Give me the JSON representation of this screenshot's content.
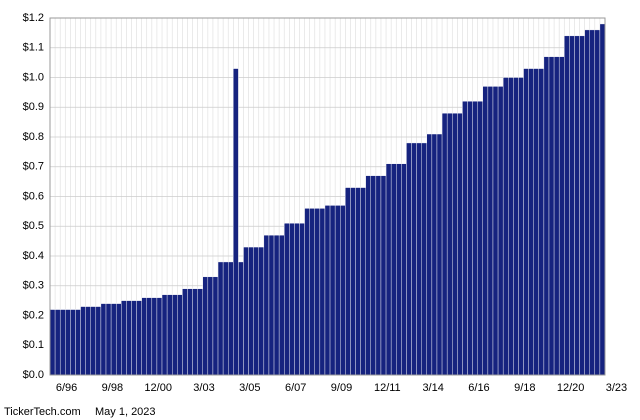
{
  "chart_data": {
    "type": "bar",
    "categories": [
      "6/96",
      null,
      null,
      null,
      null,
      null,
      null,
      null,
      null,
      "9/98",
      null,
      null,
      null,
      null,
      null,
      null,
      null,
      null,
      "12/00",
      null,
      null,
      null,
      null,
      null,
      null,
      null,
      null,
      "3/03",
      null,
      null,
      null,
      null,
      null,
      null,
      null,
      null,
      "3/05",
      null,
      null,
      null,
      null,
      null,
      null,
      null,
      null,
      "6/07",
      null,
      null,
      null,
      null,
      null,
      null,
      null,
      null,
      "9/09",
      null,
      null,
      null,
      null,
      null,
      null,
      null,
      null,
      "12/11",
      null,
      null,
      null,
      null,
      null,
      null,
      null,
      null,
      "3/14",
      null,
      null,
      null,
      null,
      null,
      null,
      null,
      null,
      "6/16",
      null,
      null,
      null,
      null,
      null,
      null,
      null,
      null,
      "9/18",
      null,
      null,
      null,
      null,
      null,
      null,
      null,
      null,
      "12/20",
      null,
      null,
      null,
      null,
      null,
      null,
      null,
      null,
      "3/23"
    ],
    "values": [
      0.22,
      0.22,
      0.22,
      0.22,
      0.22,
      0.22,
      0.23,
      0.23,
      0.23,
      0.23,
      0.24,
      0.24,
      0.24,
      0.24,
      0.25,
      0.25,
      0.25,
      0.25,
      0.26,
      0.26,
      0.26,
      0.26,
      0.27,
      0.27,
      0.27,
      0.27,
      0.29,
      0.29,
      0.29,
      0.29,
      0.33,
      0.33,
      0.33,
      0.38,
      0.38,
      0.38,
      1.03,
      0.38,
      0.43,
      0.43,
      0.43,
      0.43,
      0.47,
      0.47,
      0.47,
      0.47,
      0.51,
      0.51,
      0.51,
      0.51,
      0.56,
      0.56,
      0.56,
      0.56,
      0.57,
      0.57,
      0.57,
      0.57,
      0.63,
      0.63,
      0.63,
      0.63,
      0.67,
      0.67,
      0.67,
      0.67,
      0.71,
      0.71,
      0.71,
      0.71,
      0.78,
      0.78,
      0.78,
      0.78,
      0.81,
      0.81,
      0.81,
      0.88,
      0.88,
      0.88,
      0.88,
      0.92,
      0.92,
      0.92,
      0.92,
      0.97,
      0.97,
      0.97,
      0.97,
      1.0,
      1.0,
      1.0,
      1.0,
      1.03,
      1.03,
      1.03,
      1.03,
      1.07,
      1.07,
      1.07,
      1.07,
      1.14,
      1.14,
      1.14,
      1.14,
      1.16,
      1.16,
      1.16,
      1.18
    ],
    "color": "#16237f",
    "ylim": [
      0,
      1.2
    ],
    "yticks": [
      {
        "value": 0,
        "label": "$0.0"
      },
      {
        "value": 0.1,
        "label": "$0.1"
      },
      {
        "value": 0.2,
        "label": "$0.2"
      },
      {
        "value": 0.3,
        "label": "$0.3"
      },
      {
        "value": 0.4,
        "label": "$0.4"
      },
      {
        "value": 0.5,
        "label": "$0.5"
      },
      {
        "value": 0.6,
        "label": "$0.6"
      },
      {
        "value": 0.7,
        "label": "$0.7"
      },
      {
        "value": 0.8,
        "label": "$0.8"
      },
      {
        "value": 0.9,
        "label": "$0.9"
      },
      {
        "value": 1.0,
        "label": "$1.0"
      },
      {
        "value": 1.1,
        "label": "$1.1"
      },
      {
        "value": 1.2,
        "label": "$1.2"
      }
    ],
    "grid": true,
    "footer_source": "TickerTech.com",
    "footer_date": "May 1, 2023"
  }
}
